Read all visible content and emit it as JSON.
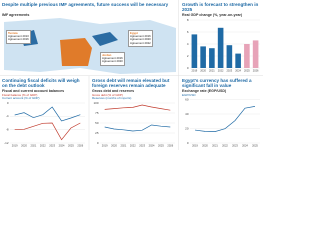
{
  "map_panel": {
    "title": "Despite multiple previous IMF agreements, future success will be necessary",
    "subtitle": "IMF agreements",
    "boxes": [
      {
        "name": "Tunisia",
        "lines": [
          "Agreement 2013",
          "Agreement 2016"
        ]
      },
      {
        "name": "Egypt",
        "lines": [
          "Agreement 2016",
          "Agreement 2020",
          "Agreement 2022"
        ]
      },
      {
        "name": "Jordan",
        "lines": [
          "Agreement 2016",
          "Agreement 2020"
        ]
      }
    ]
  },
  "chart_data": [
    {
      "type": "bar",
      "title": "Growth is forecast to strengthen in 2025",
      "subtitle": "Real GDP change (%, year-on-year)",
      "categories": [
        "2019",
        "2020",
        "2021",
        "2022",
        "2023",
        "2024",
        "2025",
        "2026"
      ],
      "values": [
        5.6,
        3.6,
        3.3,
        6.7,
        3.8,
        2.4,
        4.0,
        4.6
      ],
      "colors": [
        "#1f6aa5",
        "#1f6aa5",
        "#1f6aa5",
        "#1f6aa5",
        "#1f6aa5",
        "#1f6aa5",
        "#e7a3b8",
        "#e7a3b8"
      ],
      "ylim": [
        0,
        8
      ],
      "yticks": [
        0,
        2,
        4,
        6,
        8
      ],
      "grid": true
    },
    {
      "type": "line",
      "title": "Continuing fiscal deficits will weigh on the debt outlook",
      "subtitle": "Fiscal and current account balances",
      "categories": [
        "2019",
        "2020",
        "2021",
        "2022",
        "2023",
        "2024",
        "2025",
        "2026"
      ],
      "series": [
        {
          "name": "Fiscal balance (% of GDP)",
          "color": "#c0392b",
          "values": [
            -8,
            -7.9,
            -7,
            -6.1,
            -6,
            -11,
            -7.5,
            -6
          ]
        },
        {
          "name": "Current account (% of GDP)",
          "color": "#1f6aa5",
          "values": [
            -3.6,
            -2.9,
            -4.4,
            -3.5,
            -1.2,
            -5.4,
            -4.5,
            -3.5
          ]
        }
      ],
      "ylim": [
        -12,
        0
      ],
      "yticks": [
        -12,
        -8,
        -4,
        0
      ],
      "grid": true
    },
    {
      "type": "line",
      "title": "Gross debt will remain elevated but foreign reserves remain adequate",
      "subtitle": "Gross debt and reserves",
      "categories": [
        "2019",
        "2020",
        "2021",
        "2022",
        "2023",
        "2024",
        "2025",
        "2026"
      ],
      "series": [
        {
          "name": "Gross debt (% of GDP)",
          "color": "#c0392b",
          "values": [
            84,
            86,
            88,
            89,
            95,
            90,
            86,
            82
          ]
        },
        {
          "name": "Reserves (months of imports)",
          "color": "#1f6aa5",
          "values": [
            40,
            35,
            33,
            30,
            32,
            45,
            42,
            40
          ]
        }
      ],
      "ylim": [
        0,
        100
      ],
      "yticks": [
        0,
        25,
        50,
        75,
        100
      ],
      "grid": true
    },
    {
      "type": "line",
      "title": "Egypt's currency has suffered a significant fall in value",
      "subtitle": "Exchange rate (EGP/USD)",
      "categories": [
        "2019",
        "2020",
        "2021",
        "2022",
        "2023",
        "2024",
        "2025"
      ],
      "series": [
        {
          "name": "EGP/USD",
          "color": "#1f6aa5",
          "values": [
            17.8,
            16,
            15.7,
            19.7,
            30.9,
            48,
            50.5
          ]
        }
      ],
      "ylim": [
        0,
        60
      ],
      "yticks": [
        0,
        20,
        40,
        60
      ],
      "grid": true
    }
  ]
}
